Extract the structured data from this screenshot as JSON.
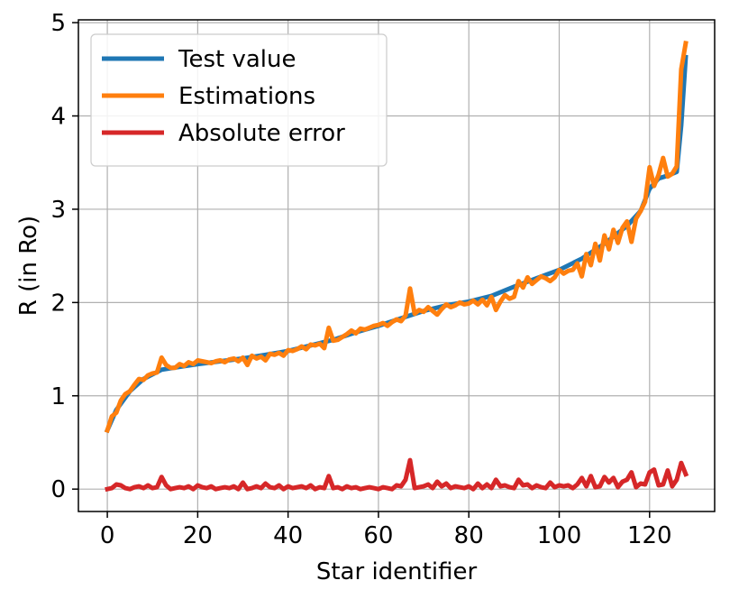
{
  "chart_data": {
    "type": "line",
    "xlabel": "Star identifier",
    "ylabel": "R (in Ro)",
    "xlim": [
      -6.4,
      134.4
    ],
    "ylim": [
      -0.24,
      5.03
    ],
    "xticks": [
      0,
      20,
      40,
      60,
      80,
      100,
      120
    ],
    "yticks": [
      0,
      1,
      2,
      3,
      4,
      5
    ],
    "grid": true,
    "legend_position": "upper-left",
    "series": [
      {
        "name": "Test value",
        "color": "#1f77b4",
        "x": [
          0,
          2,
          5,
          8,
          12,
          16,
          20,
          25,
          30,
          35,
          40,
          45,
          50,
          55,
          60,
          65,
          70,
          75,
          80,
          85,
          90,
          95,
          100,
          105,
          110,
          115,
          118,
          120,
          122,
          124,
          126,
          127,
          128
        ],
        "values": [
          0.63,
          0.85,
          1.05,
          1.18,
          1.28,
          1.31,
          1.34,
          1.37,
          1.4,
          1.44,
          1.48,
          1.54,
          1.6,
          1.68,
          1.75,
          1.83,
          1.91,
          1.97,
          2.01,
          2.07,
          2.17,
          2.26,
          2.35,
          2.47,
          2.63,
          2.82,
          2.98,
          3.22,
          3.33,
          3.36,
          3.4,
          3.9,
          4.63
        ]
      },
      {
        "name": "Estimations",
        "color": "#ff7f0e",
        "x": [
          0,
          1,
          2,
          3,
          4,
          5,
          6,
          7,
          8,
          9,
          10,
          11,
          12,
          13,
          14,
          15,
          16,
          17,
          18,
          19,
          20,
          21,
          22,
          23,
          24,
          25,
          26,
          27,
          28,
          29,
          30,
          31,
          32,
          33,
          34,
          35,
          36,
          37,
          38,
          39,
          40,
          41,
          42,
          43,
          44,
          45,
          46,
          47,
          48,
          49,
          50,
          51,
          52,
          53,
          54,
          55,
          56,
          57,
          58,
          59,
          60,
          61,
          62,
          63,
          64,
          65,
          66,
          67,
          68,
          69,
          70,
          71,
          72,
          73,
          74,
          75,
          76,
          77,
          78,
          79,
          80,
          81,
          82,
          83,
          84,
          85,
          86,
          87,
          88,
          89,
          90,
          91,
          92,
          93,
          94,
          95,
          96,
          97,
          98,
          99,
          100,
          101,
          102,
          103,
          104,
          105,
          106,
          107,
          108,
          109,
          110,
          111,
          112,
          113,
          114,
          115,
          116,
          117,
          118,
          119,
          120,
          121,
          122,
          123,
          124,
          125,
          126,
          127,
          128
        ],
        "values": [
          0.63,
          0.78,
          0.82,
          0.95,
          1.02,
          1.05,
          1.12,
          1.18,
          1.17,
          1.22,
          1.24,
          1.25,
          1.41,
          1.33,
          1.3,
          1.3,
          1.34,
          1.32,
          1.36,
          1.34,
          1.38,
          1.37,
          1.36,
          1.35,
          1.37,
          1.38,
          1.36,
          1.39,
          1.4,
          1.37,
          1.41,
          1.33,
          1.43,
          1.4,
          1.42,
          1.38,
          1.45,
          1.44,
          1.46,
          1.43,
          1.49,
          1.48,
          1.5,
          1.53,
          1.5,
          1.55,
          1.54,
          1.56,
          1.51,
          1.73,
          1.59,
          1.6,
          1.63,
          1.66,
          1.7,
          1.67,
          1.72,
          1.71,
          1.73,
          1.75,
          1.76,
          1.78,
          1.75,
          1.79,
          1.82,
          1.8,
          1.86,
          2.15,
          1.88,
          1.92,
          1.9,
          1.95,
          1.91,
          1.87,
          1.93,
          1.98,
          1.95,
          1.97,
          2.0,
          1.98,
          1.99,
          2.02,
          1.98,
          2.03,
          1.97,
          2.06,
          1.92,
          2.01,
          2.08,
          2.04,
          2.06,
          2.23,
          2.16,
          2.27,
          2.2,
          2.24,
          2.28,
          2.26,
          2.23,
          2.27,
          2.35,
          2.31,
          2.34,
          2.35,
          2.42,
          2.28,
          2.52,
          2.4,
          2.63,
          2.45,
          2.72,
          2.57,
          2.78,
          2.64,
          2.8,
          2.87,
          2.65,
          2.9,
          2.98,
          3.08,
          3.45,
          3.25,
          3.37,
          3.55,
          3.35,
          3.38,
          3.46,
          4.5,
          4.78
        ]
      },
      {
        "name": "Absolute error",
        "color": "#d62728",
        "x": [
          0,
          1,
          2,
          3,
          4,
          5,
          6,
          7,
          8,
          9,
          10,
          11,
          12,
          13,
          14,
          15,
          16,
          17,
          18,
          19,
          20,
          21,
          22,
          23,
          24,
          25,
          26,
          27,
          28,
          29,
          30,
          31,
          32,
          33,
          34,
          35,
          36,
          37,
          38,
          39,
          40,
          41,
          42,
          43,
          44,
          45,
          46,
          47,
          48,
          49,
          50,
          51,
          52,
          53,
          54,
          55,
          56,
          57,
          58,
          59,
          60,
          61,
          62,
          63,
          64,
          65,
          66,
          67,
          68,
          69,
          70,
          71,
          72,
          73,
          74,
          75,
          76,
          77,
          78,
          79,
          80,
          81,
          82,
          83,
          84,
          85,
          86,
          87,
          88,
          89,
          90,
          91,
          92,
          93,
          94,
          95,
          96,
          97,
          98,
          99,
          100,
          101,
          102,
          103,
          104,
          105,
          106,
          107,
          108,
          109,
          110,
          111,
          112,
          113,
          114,
          115,
          116,
          117,
          118,
          119,
          120,
          121,
          122,
          123,
          124,
          125,
          126,
          127,
          128
        ],
        "values": [
          0.0,
          0.01,
          0.05,
          0.04,
          0.01,
          0.0,
          0.02,
          0.03,
          0.01,
          0.04,
          0.01,
          0.02,
          0.13,
          0.04,
          0.0,
          0.01,
          0.02,
          0.01,
          0.03,
          0.0,
          0.04,
          0.02,
          0.01,
          0.03,
          0.0,
          0.01,
          0.02,
          0.01,
          0.03,
          0.0,
          0.07,
          0.0,
          0.01,
          0.03,
          0.01,
          0.06,
          0.02,
          0.01,
          0.04,
          0.0,
          0.03,
          0.01,
          0.02,
          0.03,
          0.01,
          0.04,
          0.0,
          0.02,
          0.01,
          0.14,
          0.01,
          0.02,
          0.0,
          0.03,
          0.01,
          0.02,
          0.0,
          0.01,
          0.02,
          0.01,
          0.0,
          0.02,
          0.01,
          0.0,
          0.04,
          0.03,
          0.1,
          0.31,
          0.01,
          0.02,
          0.03,
          0.05,
          0.01,
          0.08,
          0.03,
          0.06,
          0.01,
          0.03,
          0.02,
          0.01,
          0.03,
          0.0,
          0.06,
          0.01,
          0.05,
          0.01,
          0.1,
          0.03,
          0.04,
          0.02,
          0.01,
          0.1,
          0.04,
          0.05,
          0.01,
          0.04,
          0.02,
          0.01,
          0.07,
          0.02,
          0.04,
          0.03,
          0.04,
          0.01,
          0.05,
          0.12,
          0.03,
          0.14,
          0.02,
          0.03,
          0.13,
          0.07,
          0.12,
          0.02,
          0.08,
          0.1,
          0.18,
          0.02,
          0.06,
          0.05,
          0.18,
          0.21,
          0.04,
          0.05,
          0.2,
          0.03,
          0.1,
          0.28,
          0.16
        ]
      }
    ]
  }
}
